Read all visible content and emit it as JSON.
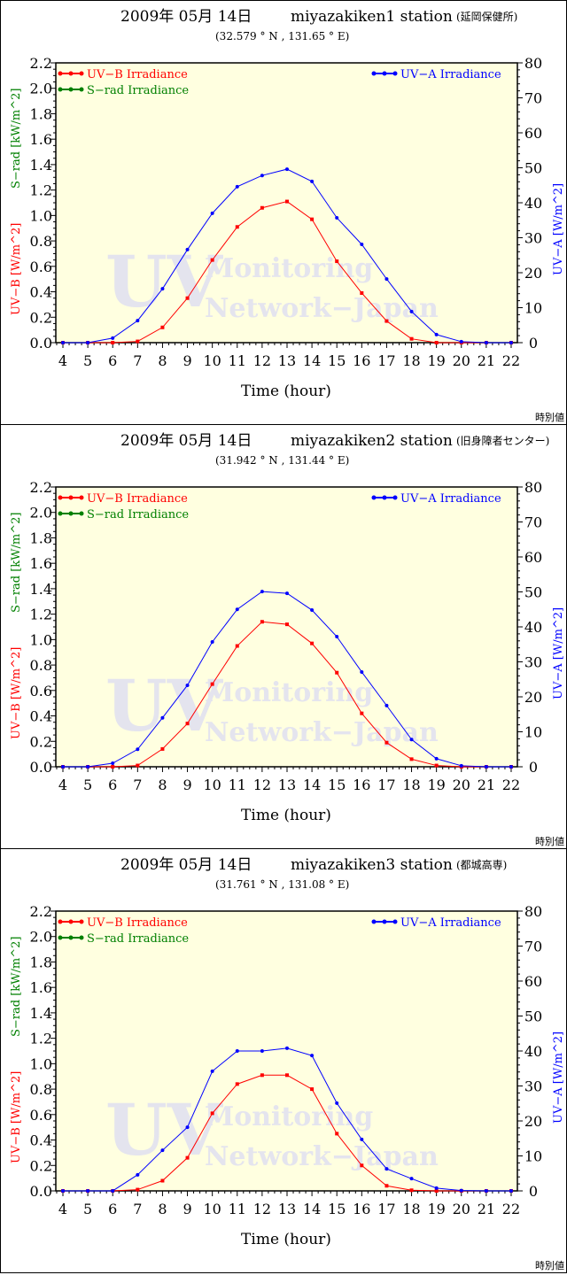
{
  "colors": {
    "uvb": "#ff0000",
    "srad": "#008000",
    "uva": "#0000ff",
    "plot_bg": "#ffffe0",
    "watermark": "#e4e4ee"
  },
  "common": {
    "xlabel": "Time (hour)",
    "ylabel_uvb": "UV−B [W/m^2]",
    "ylabel_srad": "S−rad [kW/m^2]",
    "ylabel_uva": "UV−A [W/m^2]",
    "legend_uvb": "UV−B Irradiance",
    "legend_srad": "S−rad Irradiance",
    "legend_uva": "UV−A Irradiance",
    "footer": "時別値",
    "watermark_logo": "UV",
    "watermark_line1": "Monitoring",
    "watermark_line2": "Network−Japan"
  },
  "chart_data": [
    {
      "type": "line",
      "date": "2009年 05月 14日",
      "station": "miyazakiken1 station",
      "site": "(延岡保健所)",
      "coords": "(32.579 ° N , 131.65 ° E)",
      "x": [
        4,
        5,
        6,
        7,
        8,
        9,
        10,
        11,
        12,
        13,
        14,
        15,
        16,
        17,
        18,
        19,
        20,
        21,
        22
      ],
      "xticks": [
        "4",
        "5",
        "6",
        "7",
        "8",
        "9",
        "10",
        "11",
        "12",
        "13",
        "14",
        "15",
        "16",
        "17",
        "18",
        "19",
        "20",
        "21",
        "22"
      ],
      "ylim_left": [
        0,
        2.2
      ],
      "yticks_left": [
        "0.0",
        "0.2",
        "0.4",
        "0.6",
        "0.8",
        "1.0",
        "1.2",
        "1.4",
        "1.6",
        "1.8",
        "2.0",
        "2.2"
      ],
      "ylim_right": [
        0,
        80
      ],
      "yticks_right": [
        "0",
        "10",
        "20",
        "30",
        "40",
        "50",
        "60",
        "70",
        "80"
      ],
      "series": [
        {
          "name": "UV-B Irradiance",
          "axis": "left",
          "values": [
            0,
            0,
            0,
            0.01,
            0.12,
            0.35,
            0.65,
            0.91,
            1.06,
            1.11,
            0.97,
            0.64,
            0.39,
            0.17,
            0.03,
            0,
            0,
            0,
            0
          ]
        },
        {
          "name": "UV-A Irradiance",
          "axis": "right",
          "values": [
            0,
            0,
            1.3,
            6.3,
            15.4,
            26.6,
            37,
            44.6,
            47.8,
            49.6,
            46.1,
            35.7,
            28.1,
            18.2,
            8.9,
            2.3,
            0.3,
            0,
            0
          ]
        }
      ]
    },
    {
      "type": "line",
      "date": "2009年 05月 14日",
      "station": "miyazakiken2 station",
      "site": "(旧身障者センター)",
      "coords": "(31.942 ° N , 131.44 ° E)",
      "x": [
        4,
        5,
        6,
        7,
        8,
        9,
        10,
        11,
        12,
        13,
        14,
        15,
        16,
        17,
        18,
        19,
        20,
        21,
        22
      ],
      "xticks": [
        "4",
        "5",
        "6",
        "7",
        "8",
        "9",
        "10",
        "11",
        "12",
        "13",
        "14",
        "15",
        "16",
        "17",
        "18",
        "19",
        "20",
        "21",
        "22"
      ],
      "ylim_left": [
        0,
        2.2
      ],
      "yticks_left": [
        "0.0",
        "0.2",
        "0.4",
        "0.6",
        "0.8",
        "1.0",
        "1.2",
        "1.4",
        "1.6",
        "1.8",
        "2.0",
        "2.2"
      ],
      "ylim_right": [
        0,
        80
      ],
      "yticks_right": [
        "0",
        "10",
        "20",
        "30",
        "40",
        "50",
        "60",
        "70",
        "80"
      ],
      "series": [
        {
          "name": "UV-B Irradiance",
          "axis": "left",
          "values": [
            0,
            0,
            0,
            0.01,
            0.14,
            0.34,
            0.65,
            0.95,
            1.14,
            1.12,
            0.97,
            0.74,
            0.42,
            0.19,
            0.06,
            0.01,
            0,
            0,
            0
          ]
        },
        {
          "name": "UV-A Irradiance",
          "axis": "right",
          "values": [
            0,
            0,
            1,
            5,
            14,
            23.3,
            35.7,
            45,
            50.1,
            49.6,
            44.8,
            37.2,
            27.1,
            17.5,
            7.8,
            2.3,
            0.3,
            0,
            0
          ]
        }
      ]
    },
    {
      "type": "line",
      "date": "2009年 05月 14日",
      "station": "miyazakiken3 station",
      "site": "(都城高専)",
      "coords": "(31.761 ° N , 131.08 ° E)",
      "x": [
        4,
        5,
        6,
        7,
        8,
        9,
        10,
        11,
        12,
        13,
        14,
        15,
        16,
        17,
        18,
        19,
        20,
        21,
        22
      ],
      "xticks": [
        "4",
        "5",
        "6",
        "7",
        "8",
        "9",
        "10",
        "11",
        "12",
        "13",
        "14",
        "15",
        "16",
        "17",
        "18",
        "19",
        "20",
        "21",
        "22"
      ],
      "ylim_left": [
        0,
        2.2
      ],
      "yticks_left": [
        "0.0",
        "0.2",
        "0.4",
        "0.6",
        "0.8",
        "1.0",
        "1.2",
        "1.4",
        "1.6",
        "1.8",
        "2.0",
        "2.2"
      ],
      "ylim_right": [
        0,
        80
      ],
      "yticks_right": [
        "0",
        "10",
        "20",
        "30",
        "40",
        "50",
        "60",
        "70",
        "80"
      ],
      "series": [
        {
          "name": "UV-B Irradiance",
          "axis": "left",
          "values": [
            0,
            0,
            0,
            0.01,
            0.08,
            0.26,
            0.61,
            0.84,
            0.91,
            0.91,
            0.8,
            0.45,
            0.2,
            0.04,
            0.005,
            0,
            0,
            0,
            0
          ]
        },
        {
          "name": "UV-A Irradiance",
          "axis": "right",
          "values": [
            0,
            0,
            0,
            4.6,
            11.6,
            18.2,
            34.2,
            40,
            40,
            40.8,
            38.7,
            25.1,
            14.7,
            6.3,
            3.5,
            0.8,
            0.1,
            0,
            0
          ]
        }
      ]
    }
  ]
}
